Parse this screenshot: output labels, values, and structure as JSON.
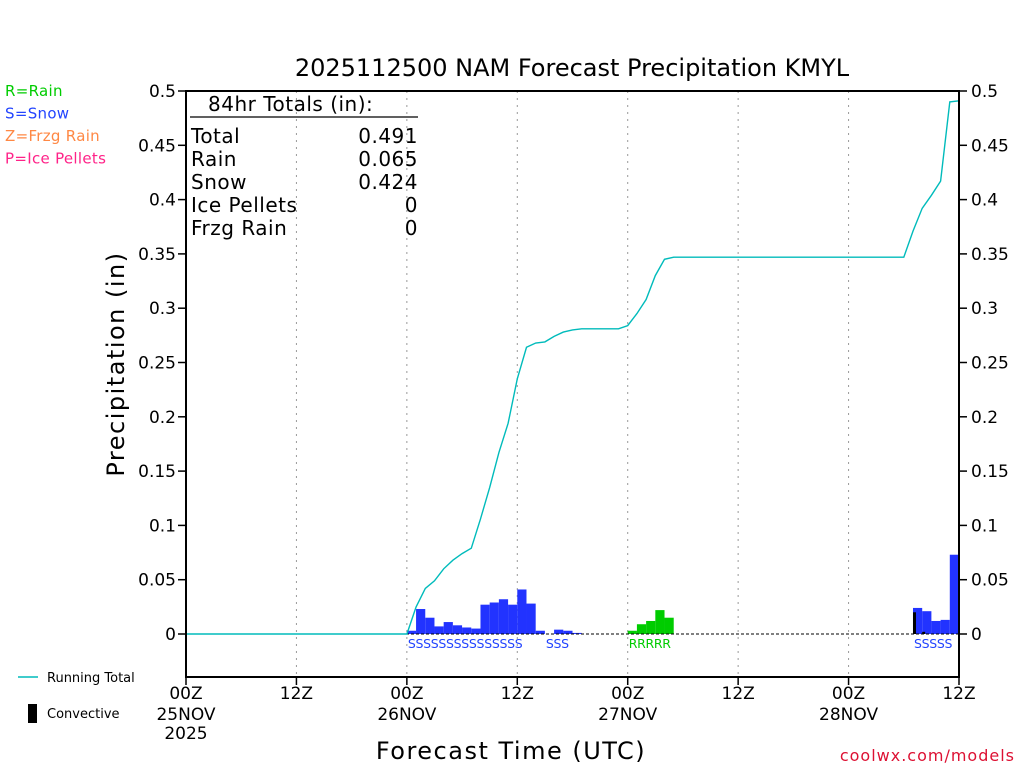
{
  "chart_data": {
    "type": "bar+line",
    "title": "2025112500 NAM Forecast Precipitation KMYL",
    "ylabel": "Precipitation (in)",
    "xlabel": "Forecast Time (UTC)",
    "ylim": [
      -0.04,
      0.5
    ],
    "xlim": [
      0,
      84
    ],
    "y_ticks": [
      0,
      0.05,
      0.1,
      0.15,
      0.2,
      0.25,
      0.3,
      0.35,
      0.4,
      0.45,
      0.5
    ],
    "y_tick_labels": [
      "0",
      "0.05",
      "0.1",
      "0.15",
      "0.2",
      "0.25",
      "0.3",
      "0.35",
      "0.4",
      "0.45",
      "0.5"
    ],
    "x_ticks": [
      {
        "hour": 0,
        "label": "00Z",
        "sub": [
          "25NOV",
          "2025"
        ]
      },
      {
        "hour": 12,
        "label": "12Z",
        "sub": []
      },
      {
        "hour": 24,
        "label": "00Z",
        "sub": [
          "26NOV"
        ]
      },
      {
        "hour": 36,
        "label": "12Z",
        "sub": []
      },
      {
        "hour": 48,
        "label": "00Z",
        "sub": [
          "27NOV"
        ]
      },
      {
        "hour": 60,
        "label": "12Z",
        "sub": []
      },
      {
        "hour": 72,
        "label": "00Z",
        "sub": [
          "28NOV"
        ]
      },
      {
        "hour": 84,
        "label": "12Z",
        "sub": []
      }
    ],
    "grid_hours": [
      12,
      24,
      36,
      48,
      60,
      72
    ],
    "legend_types": [
      {
        "text": "R=Rain",
        "color": "#00cc00"
      },
      {
        "text": "S=Snow",
        "color": "#2244ff"
      },
      {
        "text": "Z=Frzg Rain",
        "color": "#ff8844"
      },
      {
        "text": "P=Ice Pellets",
        "color": "#ff2288"
      }
    ],
    "legend_lines": [
      {
        "text": "Running Total",
        "color": "#00bbbb"
      },
      {
        "text": "Convective",
        "color": "#000000"
      }
    ],
    "totals": {
      "heading": "84hr Totals (in):",
      "rows": [
        {
          "label": "Total",
          "value": "0.491"
        },
        {
          "label": "Rain",
          "value": "0.065"
        },
        {
          "label": "Snow",
          "value": "0.424"
        },
        {
          "label": "Ice Pellets",
          "value": "0"
        },
        {
          "label": "Frzg Rain",
          "value": "0"
        }
      ]
    },
    "colors": {
      "snow": "#2233ff",
      "rain": "#00cc00",
      "running_total": "#00bbbb",
      "convective": "#000000"
    },
    "bars": [
      {
        "hour": 24,
        "value": 0.003,
        "type": "S"
      },
      {
        "hour": 25,
        "value": 0.023,
        "type": "S"
      },
      {
        "hour": 26,
        "value": 0.015,
        "type": "S"
      },
      {
        "hour": 27,
        "value": 0.007,
        "type": "S"
      },
      {
        "hour": 28,
        "value": 0.011,
        "type": "S"
      },
      {
        "hour": 29,
        "value": 0.008,
        "type": "S"
      },
      {
        "hour": 30,
        "value": 0.006,
        "type": "S"
      },
      {
        "hour": 31,
        "value": 0.005,
        "type": "S"
      },
      {
        "hour": 32,
        "value": 0.027,
        "type": "S"
      },
      {
        "hour": 33,
        "value": 0.029,
        "type": "S"
      },
      {
        "hour": 34,
        "value": 0.032,
        "type": "S"
      },
      {
        "hour": 35,
        "value": 0.027,
        "type": "S"
      },
      {
        "hour": 36,
        "value": 0.041,
        "type": "S"
      },
      {
        "hour": 37,
        "value": 0.028,
        "type": "S"
      },
      {
        "hour": 38,
        "value": 0.003,
        "type": "S"
      },
      {
        "hour": 40,
        "value": 0.004,
        "type": "S"
      },
      {
        "hour": 41,
        "value": 0.003,
        "type": "S"
      },
      {
        "hour": 42,
        "value": 0.001,
        "type": "S"
      },
      {
        "hour": 48,
        "value": 0.003,
        "type": "R"
      },
      {
        "hour": 49,
        "value": 0.009,
        "type": "R"
      },
      {
        "hour": 50,
        "value": 0.012,
        "type": "R"
      },
      {
        "hour": 51,
        "value": 0.022,
        "type": "R"
      },
      {
        "hour": 52,
        "value": 0.015,
        "type": "R"
      },
      {
        "hour": 79,
        "value": 0.024,
        "type": "S",
        "convective": 0.02
      },
      {
        "hour": 80,
        "value": 0.021,
        "type": "S",
        "convective": 0.002
      },
      {
        "hour": 81,
        "value": 0.012,
        "type": "S"
      },
      {
        "hour": 82,
        "value": 0.013,
        "type": "S"
      },
      {
        "hour": 83,
        "value": 0.073,
        "type": "S"
      }
    ],
    "type_markers": [
      {
        "text": "SSSSSSSSSSSSSSS",
        "start_hour": 24,
        "color": "#2244ff"
      },
      {
        "text": "SSS",
        "start_hour": 39,
        "color": "#2244ff"
      },
      {
        "text": "RRRRR",
        "start_hour": 48,
        "color": "#00cc00"
      },
      {
        "text": "SSSSS",
        "start_hour": 79,
        "color": "#2244ff"
      }
    ],
    "running_total": [
      [
        0,
        0
      ],
      [
        24,
        0
      ],
      [
        25,
        0.025
      ],
      [
        26,
        0.042
      ],
      [
        27,
        0.049
      ],
      [
        28,
        0.06
      ],
      [
        29,
        0.068
      ],
      [
        30,
        0.074
      ],
      [
        31,
        0.079
      ],
      [
        32,
        0.106
      ],
      [
        33,
        0.135
      ],
      [
        34,
        0.167
      ],
      [
        35,
        0.194
      ],
      [
        36,
        0.235
      ],
      [
        37,
        0.264
      ],
      [
        38,
        0.268
      ],
      [
        39,
        0.269
      ],
      [
        40,
        0.274
      ],
      [
        41,
        0.278
      ],
      [
        42,
        0.28
      ],
      [
        43,
        0.281
      ],
      [
        47,
        0.281
      ],
      [
        48,
        0.284
      ],
      [
        49,
        0.295
      ],
      [
        50,
        0.308
      ],
      [
        51,
        0.33
      ],
      [
        52,
        0.345
      ],
      [
        53,
        0.347
      ],
      [
        78,
        0.347
      ],
      [
        79,
        0.371
      ],
      [
        80,
        0.392
      ],
      [
        81,
        0.404
      ],
      [
        82,
        0.417
      ],
      [
        83,
        0.49
      ],
      [
        84,
        0.491
      ]
    ]
  },
  "credit": "coolwx.com/models"
}
